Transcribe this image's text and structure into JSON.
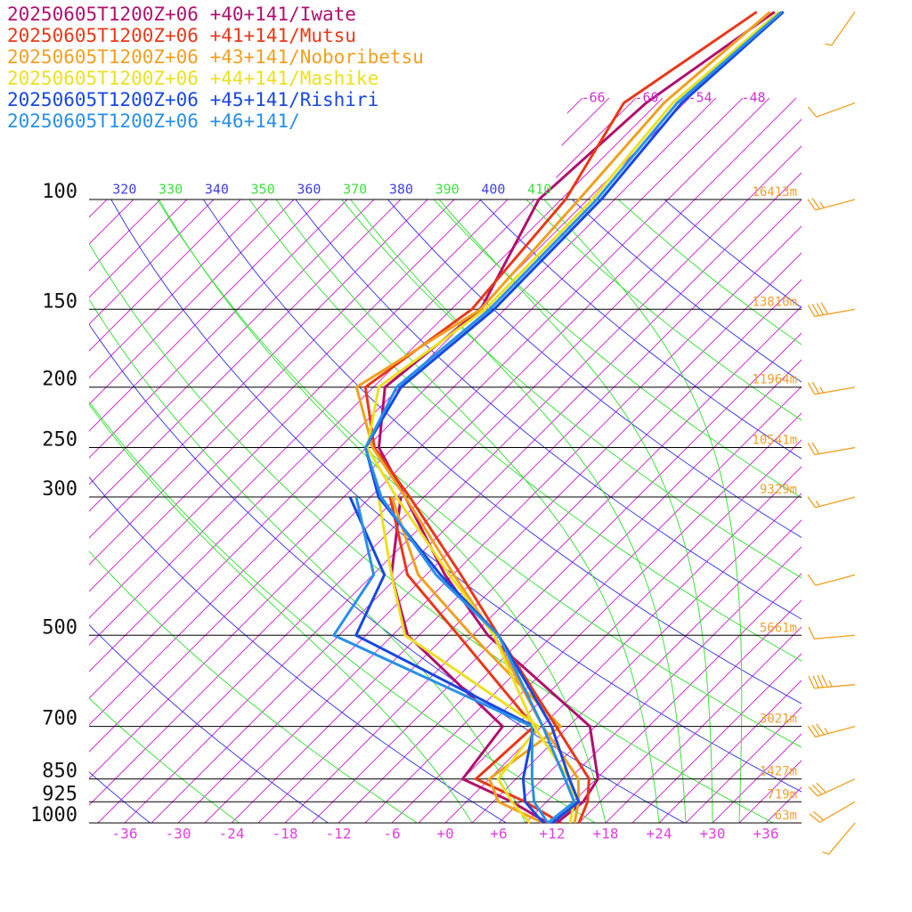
{
  "chart_data": {
    "type": "skewt",
    "series": [
      {
        "name": "20250605T1200Z+06 +40+141/Iwate",
        "color": "#b0106e",
        "temperature": [
          12.5,
          13.1,
          12.2,
          5.4,
          -16.3,
          -27.9,
          -41.1,
          -49.6,
          -55.7,
          -53.7,
          -59.5,
          -58.3,
          -54.1
        ],
        "dewpoint": [
          11.5,
          5.1,
          -3,
          -4.4,
          -25.3,
          -33.9,
          -41.6,
          null,
          null,
          null,
          null,
          null,
          null
        ]
      },
      {
        "name": "20250605T1200Z+06 +41+141/Mutsu",
        "color": "#e83818",
        "temperature": [
          15,
          13.6,
          11.2,
          1.6,
          -15.1,
          -26.1,
          -40.6,
          -50.1,
          -57.9,
          -54.7,
          -56.5,
          -60.8,
          -56.1
        ],
        "dewpoint": [
          13,
          6.6,
          -1.5,
          -0.9,
          -19.6,
          -32.1,
          -42.8,
          null,
          null,
          null,
          null,
          null,
          null
        ]
      },
      {
        "name": "20250605T1200Z+06 +43+141/Noboribetsu",
        "color": "#f0a020",
        "temperature": [
          14.5,
          12.6,
          10,
          0.1,
          -15.6,
          -26.9,
          -41.1,
          -50.3,
          -58.9,
          -53.7,
          -55,
          -56.3,
          -54.6
        ],
        "dewpoint": [
          11,
          3.6,
          0,
          2.1,
          -18.1,
          -30.9,
          -42.6,
          null,
          null,
          null,
          null,
          null,
          null
        ]
      },
      {
        "name": "20250605T1200Z+06 +44+141/Mashike",
        "color": "#ece020",
        "temperature": [
          14,
          12.1,
          9,
          -0.9,
          -15.6,
          -27.4,
          -42.1,
          -50.9,
          -56.4,
          -53.2,
          -53.5,
          -55.3,
          -53.6
        ],
        "dewpoint": [
          9.5,
          5.1,
          1,
          -0.4,
          -25.6,
          -33.9,
          -44.1,
          null,
          null,
          null,
          null,
          null,
          null
        ]
      },
      {
        "name": "20250605T1200Z+06 +45+141/Rishiri",
        "color": "#1848e0",
        "temperature": [
          12,
          12.6,
          9,
          1.1,
          -15.1,
          -28.4,
          -44.1,
          -51.1,
          -53.9,
          -52.2,
          -52.5,
          -54.3,
          -53.1
        ],
        "dewpoint": [
          11,
          6.6,
          3.8,
          -0.9,
          -31.1,
          -34.7,
          -47.3,
          null,
          null,
          null,
          null,
          null,
          null
        ]
      },
      {
        "name": "20250605T1200Z+06 +46+141/",
        "color": "#2890e8",
        "temperature": [
          11.5,
          12.1,
          8.5,
          0.1,
          -15.1,
          -28.9,
          -43.8,
          -51.1,
          -54.4,
          -52.7,
          -53,
          -54.8,
          -53.3
        ],
        "dewpoint": [
          11.5,
          7.6,
          4.8,
          -1.1,
          -33.6,
          -35.9,
          -46.6,
          null,
          null,
          null,
          null,
          null,
          null
        ]
      }
    ],
    "levels": [
      1000,
      925,
      850,
      700,
      500,
      400,
      300,
      250,
      200,
      150,
      100,
      70,
      50
    ],
    "ylim": [
      1000,
      100
    ],
    "yticks": [
      100,
      150,
      200,
      250,
      300,
      500,
      700,
      850,
      925,
      1000
    ],
    "height_labels": [
      "16413m",
      "13810m",
      "11964m",
      "10541m",
      "9329m",
      "5661m",
      "3021m",
      "1427m",
      "719m",
      "63m"
    ],
    "xlim": [
      -40,
      40
    ],
    "xticks": [
      -36,
      -30,
      -24,
      -18,
      -12,
      -6,
      {
        "value": 0,
        "label": "+0"
      },
      {
        "value": 6,
        "label": "+6"
      },
      {
        "value": 12,
        "label": "+12"
      },
      {
        "value": 18,
        "label": "+18"
      },
      {
        "value": 24,
        "label": "+24"
      },
      {
        "value": 30,
        "label": "+30"
      },
      {
        "value": 36,
        "label": "+36"
      }
    ],
    "isotherms": [
      -120,
      -117,
      -114,
      -111,
      -108,
      -105,
      -102,
      -99,
      -96,
      -93,
      -90,
      -87,
      -84,
      -81,
      -78,
      -75,
      -72,
      -69,
      -66,
      -63,
      -60,
      -57,
      -54,
      -51,
      -48,
      -45,
      -42,
      -39,
      -36,
      -33,
      -30,
      -27,
      -24,
      -21,
      -18,
      -15,
      -12,
      -9,
      -6,
      -3,
      0,
      3,
      6,
      9,
      12,
      15,
      18,
      21,
      24,
      27,
      30,
      33,
      36
    ],
    "isotherm_labels": [
      -66,
      -60,
      -54,
      -48
    ],
    "isotherm_color": "#d030d0",
    "dry_adiabats": [
      240,
      250,
      260,
      270,
      280,
      290,
      300,
      310,
      320,
      330,
      340,
      350,
      360,
      370,
      380,
      390,
      400,
      410,
      420,
      430,
      440
    ],
    "theta_labels": [
      320,
      330,
      340,
      350,
      360,
      370,
      380,
      390,
      400,
      410
    ],
    "dry_colors": [
      "#4040e0",
      "#40e040"
    ],
    "moist_adiabats": [
      3,
      9,
      18,
      24,
      27,
      30,
      33
    ],
    "moist_color": "#40e040",
    "winds": {
      "pressure": [
        50,
        70,
        100,
        150,
        200,
        250,
        300,
        400,
        500,
        600,
        700,
        850,
        925,
        1000
      ],
      "speed": [
        5,
        10,
        25,
        40,
        25,
        20,
        15,
        10,
        10,
        45,
        35,
        30,
        20,
        5
      ],
      "direction": [
        215,
        250,
        255,
        260,
        260,
        260,
        255,
        255,
        265,
        265,
        255,
        245,
        240,
        220
      ],
      "color": "#f0a020"
    }
  }
}
